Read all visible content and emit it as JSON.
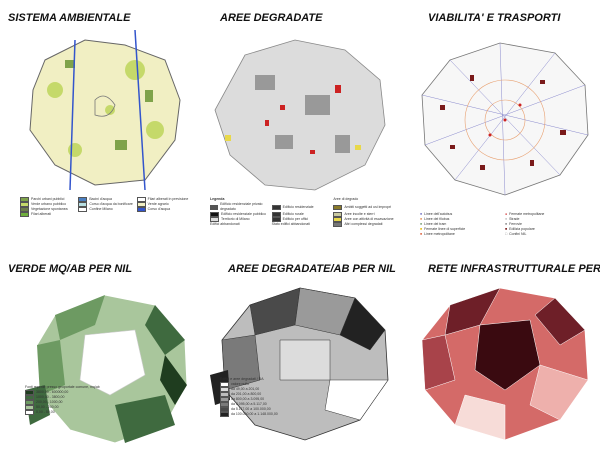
{
  "panels": [
    {
      "title": "SISTEMA AMBIENTALE",
      "legend": [
        "Parchi urbani pubblici",
        "Verde urbano pubblico",
        "Vegetazione spontanea",
        "Filari alberati",
        "Bacini d'acqua",
        "Corso d'acqua da bonificare",
        "Confine Milano",
        "Filari alberati in previsione",
        "Verde agrario",
        "Corso d'acqua"
      ],
      "colors": [
        "#7fa34a",
        "#c5d96a",
        "#6d7d4a",
        "#6fae3c",
        "#4a7fc2",
        "#b7dfe2",
        "#ffffff",
        "#999999",
        "#f1efc3",
        "#3355cc"
      ]
    },
    {
      "title": "AREE DEGRADATE",
      "legend_heading": "Legenda",
      "legend": [
        "Edificio residenziale privato degradato",
        "Edificio residenziale pubblico",
        "Territorio di Milano",
        "Edifici abbandonati",
        "Edificio residenziale",
        "Edificio rurale",
        "Edificio per uffici",
        "Stato edifici abbandonati",
        "Aree di degrado",
        "Ambiti soggetti ad usi impropri",
        "Aree incolte e sterri",
        "Aree con attività di escavazione",
        "Altri complessi degradati"
      ],
      "colors": [
        "#555555",
        "#111111",
        "#dddddd",
        "#8a7a2a",
        "#c9c9a0",
        "#e8d84a",
        "#777777"
      ]
    },
    {
      "title": "VIABILITA' E TRASPORTI",
      "legend": [
        "Linee dell'autobus",
        "Linee del filobus",
        "Linee del tram",
        "Fermate linee di superficie",
        "Linee metropolitane",
        "Fermate metropolitane",
        "Strade",
        "Ferrovie",
        "Edilizia popolare",
        "Confini NIL"
      ],
      "colors": [
        "#8888cc",
        "#e8a070",
        "#88aa88",
        "#e8c020",
        "#e07050",
        "#cc2222",
        "#dddddd",
        "#999999",
        "#7a1a1a",
        "#777777"
      ]
    },
    {
      "title": "VERDE MQ/AB PER NIL",
      "legend_heading": "Fonti reperite presso geoportale comune, mq/ab",
      "legend": [
        "3800,00 - 600000,00",
        "1000,00 - 3800,00",
        "200,00 - 1000,00",
        "50,00 - 200,00",
        "0,00 - 50,00"
      ],
      "colors": [
        "#1f3d1f",
        "#3f6a3f",
        "#6d9a62",
        "#a9c69c",
        "#ffffff"
      ]
    },
    {
      "title": "AREE DEGRADATE/AB PER NIL",
      "legend_heading": "Edifici e aree degradati / DA",
      "legend": [
        "valore nullo",
        "da 49,00 a 201,00",
        "da 201,00 a 800,00",
        "da 800,00 a 3.095,00",
        "da 3.095,00 a 5.117,00",
        "da 5.117,00 a 100.000,00",
        "da 100.000,00 a 1.148.000,00"
      ],
      "colors": [
        "#ffffff",
        "#dcdcdc",
        "#bdbdbd",
        "#9a9a9a",
        "#7a7a7a",
        "#4a4a4a",
        "#222222"
      ]
    },
    {
      "title": "RETE INFRASTRUTTURALE PER NIL",
      "colors": [
        "#3a0a10",
        "#6e1f28",
        "#a8434a",
        "#d46a68",
        "#eeb0ac",
        "#f7dcd8"
      ]
    }
  ]
}
